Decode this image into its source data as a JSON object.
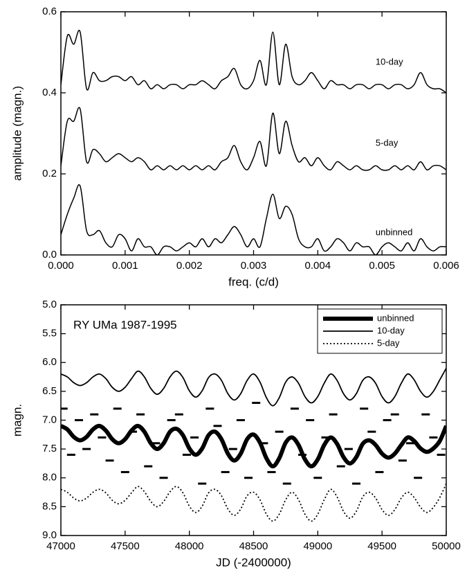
{
  "chart_data": [
    {
      "type": "line",
      "x_label": "freq. (c/d)",
      "y_label": "amplitude (magn.)",
      "xlim": [
        0,
        0.006
      ],
      "ylim": [
        0,
        0.6
      ],
      "xticks": [
        {
          "value": 0,
          "label": "0.000"
        },
        {
          "value": 0.001,
          "label": "0.001"
        },
        {
          "value": 0.002,
          "label": "0.002"
        },
        {
          "value": 0.003,
          "label": "0.003"
        },
        {
          "value": 0.004,
          "label": "0.004"
        },
        {
          "value": 0.005,
          "label": "0.005"
        },
        {
          "value": 0.006,
          "label": "0.006"
        }
      ],
      "yticks": [
        {
          "value": 0,
          "label": "0.0"
        },
        {
          "value": 0.2,
          "label": "0.2"
        },
        {
          "value": 0.4,
          "label": "0.4"
        },
        {
          "value": 0.6,
          "label": "0.6"
        }
      ],
      "x": [
        0,
        0.0001,
        0.0002,
        0.0003,
        0.0004,
        0.0005,
        0.0006,
        0.0007,
        0.0008,
        0.0009,
        0.001,
        0.0011,
        0.0012,
        0.0013,
        0.0014,
        0.0015,
        0.0016,
        0.0017,
        0.0018,
        0.0019,
        0.002,
        0.0021,
        0.0022,
        0.0023,
        0.0024,
        0.0025,
        0.0026,
        0.0027,
        0.0028,
        0.0029,
        0.003,
        0.0031,
        0.0032,
        0.0033,
        0.0034,
        0.0035,
        0.0036,
        0.0037,
        0.0038,
        0.0039,
        0.004,
        0.0041,
        0.0042,
        0.0043,
        0.0044,
        0.0045,
        0.0046,
        0.0047,
        0.0048,
        0.0049,
        0.005,
        0.0051,
        0.0052,
        0.0053,
        0.0054,
        0.0055,
        0.0056,
        0.0057,
        0.0058,
        0.0059,
        0.006
      ],
      "series": [
        {
          "name": "10-day",
          "color": "#000000",
          "line_width": 1.5,
          "line_style": "solid",
          "values": [
            0.42,
            0.54,
            0.52,
            0.55,
            0.41,
            0.45,
            0.43,
            0.43,
            0.44,
            0.44,
            0.43,
            0.44,
            0.42,
            0.43,
            0.41,
            0.42,
            0.41,
            0.42,
            0.42,
            0.41,
            0.42,
            0.42,
            0.43,
            0.42,
            0.41,
            0.43,
            0.44,
            0.46,
            0.42,
            0.41,
            0.43,
            0.48,
            0.42,
            0.55,
            0.42,
            0.52,
            0.44,
            0.42,
            0.43,
            0.45,
            0.43,
            0.41,
            0.43,
            0.42,
            0.42,
            0.41,
            0.42,
            0.42,
            0.41,
            0.42,
            0.42,
            0.41,
            0.42,
            0.42,
            0.41,
            0.42,
            0.45,
            0.42,
            0.41,
            0.41,
            0.4
          ]
        },
        {
          "name": "5-day",
          "color": "#000000",
          "line_width": 1.5,
          "line_style": "solid",
          "values": [
            0.22,
            0.33,
            0.33,
            0.36,
            0.23,
            0.26,
            0.25,
            0.23,
            0.24,
            0.25,
            0.24,
            0.23,
            0.24,
            0.23,
            0.21,
            0.22,
            0.21,
            0.22,
            0.21,
            0.22,
            0.21,
            0.22,
            0.21,
            0.22,
            0.21,
            0.23,
            0.24,
            0.27,
            0.23,
            0.21,
            0.24,
            0.28,
            0.22,
            0.35,
            0.25,
            0.33,
            0.27,
            0.23,
            0.24,
            0.22,
            0.24,
            0.22,
            0.21,
            0.23,
            0.22,
            0.21,
            0.22,
            0.21,
            0.21,
            0.22,
            0.21,
            0.21,
            0.22,
            0.21,
            0.22,
            0.21,
            0.23,
            0.21,
            0.22,
            0.22,
            0.21
          ]
        },
        {
          "name": "unbinned",
          "color": "#000000",
          "line_width": 1.5,
          "line_style": "solid",
          "values": [
            0.05,
            0.1,
            0.14,
            0.17,
            0.06,
            0.05,
            0.06,
            0.03,
            0.02,
            0.05,
            0.04,
            0.01,
            0.04,
            0.02,
            0.02,
            0.0,
            0.02,
            0.02,
            0.01,
            0.02,
            0.03,
            0.02,
            0.04,
            0.02,
            0.04,
            0.03,
            0.05,
            0.07,
            0.05,
            0.02,
            0.04,
            0.02,
            0.09,
            0.15,
            0.09,
            0.12,
            0.1,
            0.04,
            0.02,
            0.02,
            0.04,
            0.01,
            0.02,
            0.04,
            0.03,
            0.01,
            0.03,
            0.02,
            0.02,
            0.0,
            0.02,
            0.03,
            0.02,
            0.01,
            0.03,
            0.01,
            0.04,
            0.02,
            0.01,
            0.02,
            0.02
          ]
        }
      ]
    },
    {
      "type": "line",
      "annotation": "RY UMa 1987-1995",
      "x_label": "JD (-2400000)",
      "y_label": "magn.",
      "xlim": [
        47000,
        50000
      ],
      "ylim": [
        5.0,
        9.0
      ],
      "invert_y": true,
      "legend": "upper right",
      "xticks": [
        47000,
        47500,
        48000,
        48500,
        49000,
        49500,
        50000
      ],
      "yticks": [
        {
          "value": 5,
          "label": "5.0"
        },
        {
          "value": 5.5,
          "label": "5.5"
        },
        {
          "value": 6,
          "label": "6.0"
        },
        {
          "value": 6.5,
          "label": "6.5"
        },
        {
          "value": 7,
          "label": "7.0"
        },
        {
          "value": 7.5,
          "label": "7.5"
        },
        {
          "value": 8,
          "label": "8.0"
        },
        {
          "value": 8.5,
          "label": "8.5"
        },
        {
          "value": 9,
          "label": "9.0"
        }
      ],
      "x": [
        47000,
        47050,
        47100,
        47150,
        47200,
        47250,
        47300,
        47350,
        47400,
        47450,
        47500,
        47550,
        47600,
        47650,
        47700,
        47750,
        47800,
        47850,
        47900,
        47950,
        48000,
        48050,
        48100,
        48150,
        48200,
        48250,
        48300,
        48350,
        48400,
        48450,
        48500,
        48550,
        48600,
        48650,
        48700,
        48750,
        48800,
        48850,
        48900,
        48950,
        49000,
        49050,
        49100,
        49150,
        49200,
        49250,
        49300,
        49350,
        49400,
        49450,
        49500,
        49550,
        49600,
        49650,
        49700,
        49750,
        49800,
        49850,
        49900,
        49950,
        50000
      ],
      "series": [
        {
          "name": "unbinned",
          "color": "#000000",
          "line_width": 6,
          "line_style": "solid",
          "values": [
            7.1,
            7.16,
            7.29,
            7.35,
            7.29,
            7.16,
            7.1,
            7.18,
            7.33,
            7.4,
            7.33,
            7.18,
            7.1,
            7.2,
            7.4,
            7.5,
            7.4,
            7.2,
            7.15,
            7.26,
            7.49,
            7.6,
            7.49,
            7.26,
            7.2,
            7.33,
            7.58,
            7.7,
            7.58,
            7.33,
            7.25,
            7.39,
            7.66,
            7.8,
            7.66,
            7.39,
            7.3,
            7.43,
            7.68,
            7.8,
            7.68,
            7.43,
            7.3,
            7.41,
            7.64,
            7.75,
            7.64,
            7.41,
            7.35,
            7.43,
            7.58,
            7.65,
            7.58,
            7.43,
            7.3,
            7.36,
            7.49,
            7.55,
            7.49,
            7.36,
            7.1
          ]
        },
        {
          "name": "10-day",
          "color": "#000000",
          "line_width": 1.8,
          "line_style": "solid",
          "values": [
            6.2,
            6.25,
            6.35,
            6.4,
            6.35,
            6.25,
            6.2,
            6.28,
            6.43,
            6.5,
            6.43,
            6.28,
            6.15,
            6.25,
            6.45,
            6.55,
            6.45,
            6.25,
            6.15,
            6.26,
            6.49,
            6.6,
            6.49,
            6.26,
            6.2,
            6.31,
            6.54,
            6.65,
            6.54,
            6.31,
            6.2,
            6.34,
            6.61,
            6.75,
            6.61,
            6.34,
            6.25,
            6.36,
            6.59,
            6.7,
            6.59,
            6.36,
            6.2,
            6.31,
            6.54,
            6.65,
            6.54,
            6.31,
            6.25,
            6.36,
            6.59,
            6.7,
            6.59,
            6.36,
            6.2,
            6.3,
            6.5,
            6.6,
            6.5,
            6.3,
            6.1
          ]
        },
        {
          "name": "5-day",
          "color": "#000000",
          "line_width": 1.8,
          "line_style": "dotted",
          "values": [
            8.2,
            8.25,
            8.35,
            8.4,
            8.35,
            8.25,
            8.2,
            8.26,
            8.39,
            8.45,
            8.39,
            8.26,
            8.15,
            8.24,
            8.41,
            8.5,
            8.41,
            8.24,
            8.15,
            8.26,
            8.49,
            8.6,
            8.49,
            8.26,
            8.2,
            8.31,
            8.54,
            8.65,
            8.54,
            8.31,
            8.25,
            8.38,
            8.63,
            8.75,
            8.63,
            8.38,
            8.25,
            8.38,
            8.63,
            8.75,
            8.63,
            8.38,
            8.2,
            8.33,
            8.58,
            8.7,
            8.58,
            8.33,
            8.25,
            8.35,
            8.55,
            8.65,
            8.55,
            8.35,
            8.25,
            8.34,
            8.51,
            8.6,
            8.51,
            8.34,
            8.1
          ]
        }
      ],
      "points": {
        "color": "#000000",
        "x": [
          47020,
          47080,
          47140,
          47200,
          47260,
          47320,
          47380,
          47440,
          47500,
          47560,
          47620,
          47680,
          47740,
          47800,
          47860,
          47920,
          47980,
          48040,
          48100,
          48160,
          48220,
          48280,
          48340,
          48400,
          48460,
          48520,
          48580,
          48640,
          48700,
          48760,
          48820,
          48880,
          48940,
          49000,
          49060,
          49120,
          49180,
          49240,
          49300,
          49360,
          49420,
          49480,
          49540,
          49600,
          49660,
          49720,
          49780,
          49840,
          49900,
          49960
        ],
        "y": [
          6.8,
          7.6,
          7.0,
          7.5,
          6.9,
          7.3,
          7.7,
          6.8,
          7.9,
          7.2,
          6.9,
          7.8,
          7.4,
          8.0,
          7.0,
          6.9,
          7.6,
          7.3,
          8.1,
          6.8,
          7.1,
          7.9,
          7.5,
          7.0,
          8.0,
          6.7,
          7.4,
          7.9,
          7.2,
          8.1,
          6.8,
          7.6,
          7.0,
          8.0,
          7.3,
          6.9,
          7.8,
          7.5,
          8.1,
          6.8,
          7.2,
          7.9,
          7.0,
          6.9,
          7.7,
          7.4,
          8.0,
          6.9,
          7.3,
          7.6
        ]
      }
    }
  ]
}
